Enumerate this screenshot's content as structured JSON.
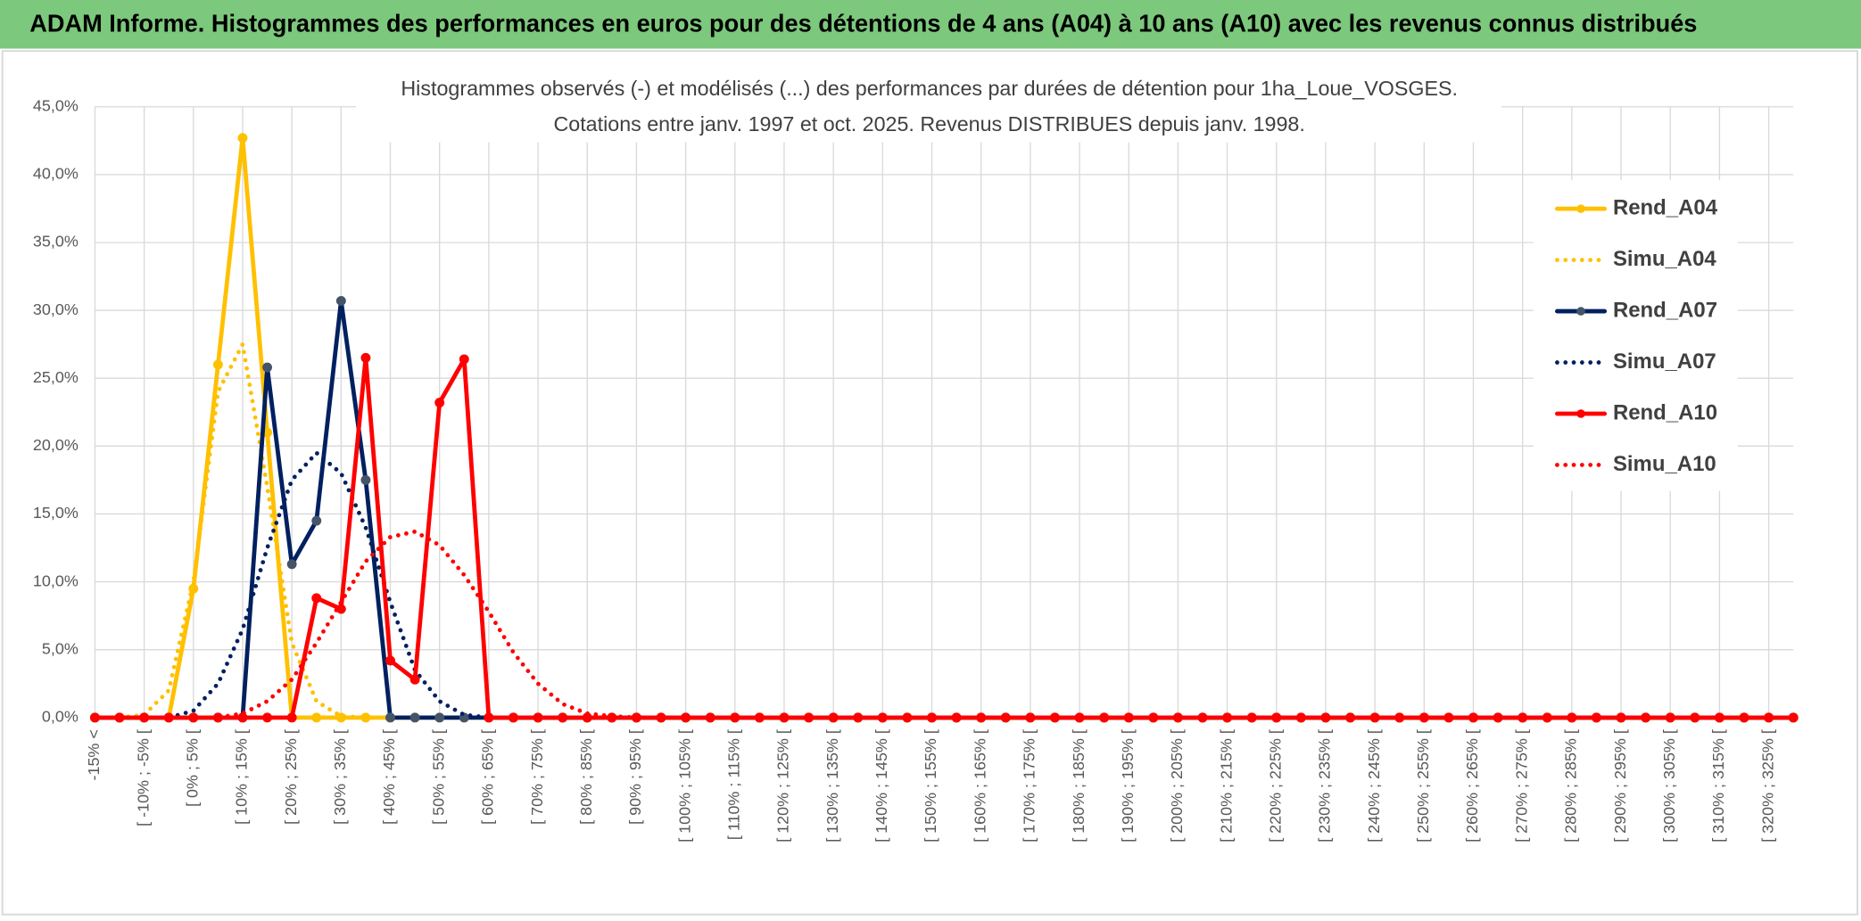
{
  "header": {
    "title": "ADAM Informe. Histogrammes des performances en euros pour des détentions de 4 ans (A04) à 10 ans (A10) avec les revenus connus distribués"
  },
  "chart_data": {
    "type": "line",
    "title": "Histogrammes observés (-) et modélisés (...) des performances par durées de détention pour 1ha_Loue_VOSGES.",
    "subtitle": "Cotations entre janv. 1997 et oct. 2025. Revenus DISTRIBUES depuis janv. 1998.",
    "categories": [
      "-15% <",
      null,
      "[ -10% ; -5% [",
      null,
      "[ 0% ; 5% [",
      null,
      "[ 10% ; 15% [",
      null,
      "[ 20% ; 25% [",
      null,
      "[ 30% ; 35% [",
      null,
      "[ 40% ; 45% [",
      null,
      "[ 50% ; 55% [",
      null,
      "[ 60% ; 65% [",
      null,
      "[ 70% ; 75% [",
      null,
      "[ 80% ; 85% [",
      null,
      "[ 90% ; 95% [",
      null,
      "[ 100% ; 105% [",
      null,
      "[ 110% ; 115% [",
      null,
      "[ 120% ; 125% [",
      null,
      "[ 130% ; 135% [",
      null,
      "[ 140% ; 145% [",
      null,
      "[ 150% ; 155% [",
      null,
      "[ 160% ; 165% [",
      null,
      "[ 170% ; 175% [",
      null,
      "[ 180% ; 185% [",
      null,
      "[ 190% ; 195% [",
      null,
      "[ 200% ; 205% [",
      null,
      "[ 210% ; 215% [",
      null,
      "[ 220% ; 225% [",
      null,
      "[ 230% ; 235% [",
      null,
      "[ 240% ; 245% [",
      null,
      "[ 250% ; 255% [",
      null,
      "[ 260% ; 265% [",
      null,
      "[ 270% ; 275% [",
      null,
      "[ 280% ; 285% [",
      null,
      "[ 290% ; 295% [",
      null,
      "[ 300% ; 305% [",
      null,
      "[ 310% ; 315% [",
      null,
      "[ 320% ; 325% [",
      null
    ],
    "series": [
      {
        "name": "Rend_A04",
        "color": "#FFC000",
        "marker_color": "#FFC000",
        "line_style": "solid",
        "values": [
          0,
          0,
          0,
          0,
          9.5,
          26,
          42.7,
          21,
          0,
          0,
          0,
          0,
          0,
          0,
          0,
          0,
          0,
          0,
          0,
          0,
          0,
          0,
          0,
          0,
          0,
          0,
          0,
          0,
          0,
          0,
          0,
          0,
          0,
          0,
          0,
          0,
          0,
          0,
          0,
          0,
          0,
          0,
          0,
          0,
          0,
          0,
          0,
          0,
          0,
          0,
          0,
          0,
          0,
          0,
          0,
          0,
          0,
          0,
          0,
          0,
          0,
          0,
          0,
          0,
          0,
          0,
          0,
          0,
          0,
          0
        ]
      },
      {
        "name": "Simu_A04",
        "color": "#FFC000",
        "line_style": "dotted",
        "values": [
          0,
          0,
          0.2,
          2,
          10,
          24,
          27.5,
          17,
          5.5,
          1.2,
          0.1,
          0,
          0,
          0,
          0,
          0,
          0,
          0,
          0,
          0,
          0,
          0,
          0,
          0,
          0,
          0,
          0,
          0,
          0,
          0,
          0,
          0,
          0,
          0,
          0,
          0,
          0,
          0,
          0,
          0,
          0,
          0,
          0,
          0,
          0,
          0,
          0,
          0,
          0,
          0,
          0,
          0,
          0,
          0,
          0,
          0,
          0,
          0,
          0,
          0,
          0,
          0,
          0,
          0,
          0,
          0,
          0,
          0,
          0,
          0
        ]
      },
      {
        "name": "Rend_A07",
        "color": "#002060",
        "marker_color": "#44546A",
        "line_style": "solid",
        "values": [
          0,
          0,
          0,
          0,
          0,
          0,
          0,
          25.8,
          11.3,
          14.5,
          30.7,
          17.5,
          0,
          0,
          0,
          0,
          0,
          0,
          0,
          0,
          0,
          0,
          0,
          0,
          0,
          0,
          0,
          0,
          0,
          0,
          0,
          0,
          0,
          0,
          0,
          0,
          0,
          0,
          0,
          0,
          0,
          0,
          0,
          0,
          0,
          0,
          0,
          0,
          0,
          0,
          0,
          0,
          0,
          0,
          0,
          0,
          0,
          0,
          0,
          0,
          0,
          0,
          0,
          0,
          0,
          0,
          0,
          0,
          0,
          0
        ]
      },
      {
        "name": "Simu_A07",
        "color": "#002060",
        "line_style": "dotted",
        "values": [
          0,
          0,
          0,
          0,
          0.5,
          2.5,
          6.5,
          12.5,
          17.5,
          19.5,
          18,
          14,
          8.5,
          3.5,
          1.2,
          0.2,
          0,
          0,
          0,
          0,
          0,
          0,
          0,
          0,
          0,
          0,
          0,
          0,
          0,
          0,
          0,
          0,
          0,
          0,
          0,
          0,
          0,
          0,
          0,
          0,
          0,
          0,
          0,
          0,
          0,
          0,
          0,
          0,
          0,
          0,
          0,
          0,
          0,
          0,
          0,
          0,
          0,
          0,
          0,
          0,
          0,
          0,
          0,
          0,
          0,
          0,
          0,
          0,
          0,
          0
        ]
      },
      {
        "name": "Rend_A10",
        "color": "#FF0000",
        "marker_color": "#FF0000",
        "line_style": "solid",
        "values": [
          0,
          0,
          0,
          0,
          0,
          0,
          0,
          0,
          0,
          8.8,
          8,
          26.5,
          4.2,
          2.8,
          23.2,
          26.4,
          0,
          0,
          0,
          0,
          0,
          0,
          0,
          0,
          0,
          0,
          0,
          0,
          0,
          0,
          0,
          0,
          0,
          0,
          0,
          0,
          0,
          0,
          0,
          0,
          0,
          0,
          0,
          0,
          0,
          0,
          0,
          0,
          0,
          0,
          0,
          0,
          0,
          0,
          0,
          0,
          0,
          0,
          0,
          0,
          0,
          0,
          0,
          0,
          0,
          0,
          0,
          0,
          0,
          0
        ]
      },
      {
        "name": "Simu_A10",
        "color": "#FF0000",
        "line_style": "dotted",
        "values": [
          0,
          0,
          0,
          0,
          0,
          0,
          0.3,
          1.2,
          2.8,
          5.5,
          8.5,
          11.5,
          13.3,
          13.7,
          12.7,
          10.5,
          7.8,
          4.8,
          2.5,
          1,
          0.3,
          0.1,
          0,
          0,
          0,
          0,
          0,
          0,
          0,
          0,
          0,
          0,
          0,
          0,
          0,
          0,
          0,
          0,
          0,
          0,
          0,
          0,
          0,
          0,
          0,
          0,
          0,
          0,
          0,
          0,
          0,
          0,
          0,
          0,
          0,
          0,
          0,
          0,
          0,
          0,
          0,
          0,
          0,
          0,
          0,
          0,
          0,
          0,
          0,
          0
        ]
      }
    ],
    "ylim": [
      0,
      45
    ],
    "yticks": [
      {
        "value": 0,
        "label": "0,0%"
      },
      {
        "value": 5,
        "label": "5,0%"
      },
      {
        "value": 10,
        "label": "10,0%"
      },
      {
        "value": 15,
        "label": "15,0%"
      },
      {
        "value": 20,
        "label": "20,0%"
      },
      {
        "value": 25,
        "label": "25,0%"
      },
      {
        "value": 30,
        "label": "30,0%"
      },
      {
        "value": 35,
        "label": "35,0%"
      },
      {
        "value": 40,
        "label": "40,0%"
      },
      {
        "value": 45,
        "label": "45,0%"
      }
    ],
    "grid": true,
    "legend": "right"
  }
}
